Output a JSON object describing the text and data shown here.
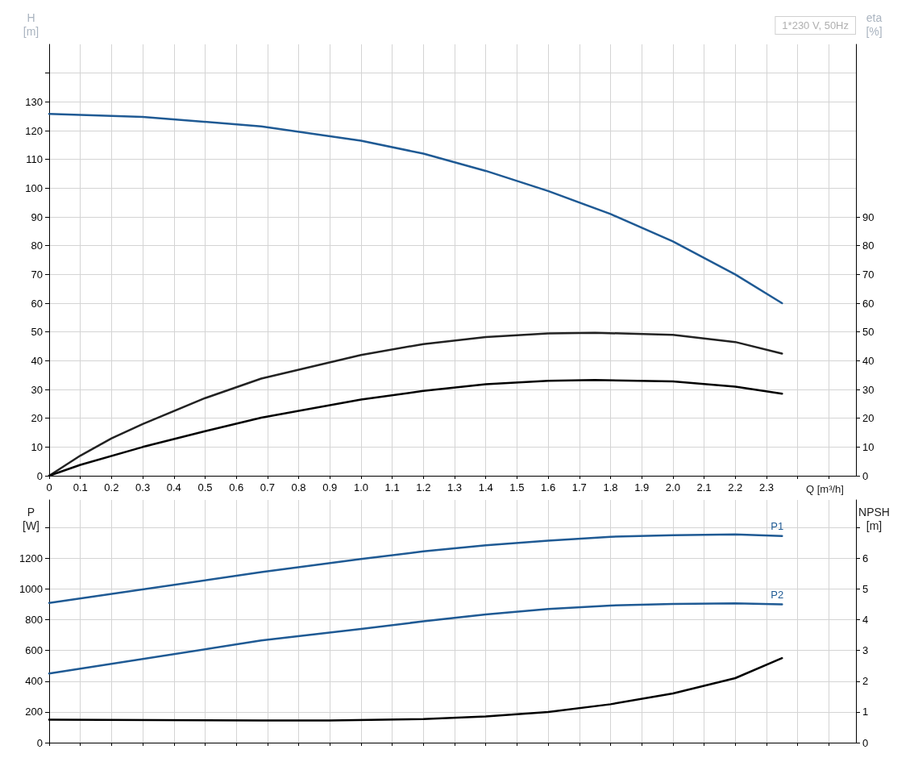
{
  "chart_data": [
    {
      "type": "line",
      "ylabel": "H\n[m]",
      "y2label": "eta\n[%]",
      "xlabel": "Q [m³/h]",
      "annotations": [
        "1*230 V, 50Hz"
      ],
      "grid": true,
      "legend": false,
      "marker": "none",
      "line_style": "solid",
      "xlim": [
        0,
        2.587
      ],
      "xticks": [
        0,
        0.1,
        0.2,
        0.3,
        0.4,
        0.5,
        0.6,
        0.7,
        0.8,
        0.9,
        {
          "value": 1.0,
          "label": "1.0"
        },
        1.1,
        1.2,
        1.3,
        1.4,
        1.5,
        1.6,
        1.7,
        1.8,
        1.9,
        {
          "value": 2.0,
          "label": "2.0"
        },
        2.1,
        2.2,
        2.3,
        {
          "value": 2.4,
          "label": null
        },
        {
          "value": 2.5,
          "label": null
        }
      ],
      "ylim": [
        0,
        150
      ],
      "yticks": [
        0,
        10,
        20,
        30,
        40,
        50,
        60,
        70,
        80,
        90,
        100,
        110,
        120,
        130,
        {
          "value": 140,
          "label": null
        }
      ],
      "y2lim": [
        0,
        150
      ],
      "y2ticks": [
        0,
        10,
        20,
        30,
        40,
        50,
        60,
        70,
        80,
        90
      ],
      "series": [
        {
          "color": "#1f5a94",
          "x": [
            0,
            0.3,
            0.68,
            1.0,
            1.2,
            1.4,
            1.6,
            1.8,
            2.0,
            2.2,
            2.35
          ],
          "values": [
            125.8,
            124.8,
            121.5,
            116.5,
            112,
            106,
            99,
            91,
            81.5,
            70,
            60
          ]
        },
        {
          "color": "#222222",
          "axis": "y2",
          "x": [
            0,
            0.1,
            0.2,
            0.3,
            0.5,
            0.68,
            1.0,
            1.2,
            1.4,
            1.6,
            1.75,
            2.0,
            2.2,
            2.35
          ],
          "values": [
            0,
            7,
            13,
            18,
            27,
            33.8,
            42,
            45.8,
            48.2,
            49.5,
            49.7,
            49,
            46.5,
            42.5
          ]
        },
        {
          "color": "#000000",
          "axis": "y2",
          "x": [
            0,
            0.1,
            0.3,
            0.5,
            0.68,
            1.0,
            1.2,
            1.4,
            1.6,
            1.75,
            2.0,
            2.2,
            2.35
          ],
          "values": [
            0,
            3.8,
            10,
            15.5,
            20.2,
            26.5,
            29.5,
            31.8,
            33,
            33.3,
            32.8,
            31,
            28.5
          ]
        }
      ]
    },
    {
      "type": "line",
      "ylabel": "P\n[W]",
      "y2label": "NPSH\n[m]",
      "grid": true,
      "legend": false,
      "marker": "none",
      "line_style": "solid",
      "tick_labels": "y",
      "xlim": [
        0,
        2.587
      ],
      "xticks": [
        0,
        0.1,
        0.2,
        0.3,
        0.4,
        0.5,
        0.6,
        0.7,
        0.8,
        0.9,
        1,
        1.1,
        1.2,
        1.3,
        1.4,
        1.5,
        1.6,
        1.7,
        1.8,
        1.9,
        2,
        2.1,
        2.2,
        2.3,
        {
          "value": 2.4,
          "label": null
        },
        {
          "value": 2.5,
          "label": null
        }
      ],
      "ylim": [
        0,
        1580
      ],
      "yticks": [
        0,
        200,
        400,
        600,
        800,
        1000,
        1200,
        {
          "value": 1400,
          "label": null
        }
      ],
      "y2lim": [
        0,
        7.9
      ],
      "y2ticks": [
        0,
        1,
        2,
        3,
        4,
        5,
        6,
        {
          "value": 7,
          "label": null
        }
      ],
      "series": [
        {
          "name": "P1",
          "color": "#1f5a94",
          "x": [
            0,
            0.68,
            1.0,
            1.2,
            1.4,
            1.6,
            1.8,
            2.0,
            2.2,
            2.35
          ],
          "values": [
            910,
            1110,
            1195,
            1245,
            1285,
            1315,
            1340,
            1350,
            1355,
            1345
          ]
        },
        {
          "name": "P2",
          "color": "#1f5a94",
          "x": [
            0,
            0.68,
            1.0,
            1.2,
            1.4,
            1.6,
            1.8,
            2.0,
            2.2,
            2.35
          ],
          "values": [
            450,
            665,
            740,
            790,
            835,
            870,
            893,
            903,
            907,
            900
          ]
        },
        {
          "color": "#000000",
          "axis": "y2",
          "x": [
            0,
            0.68,
            0.9,
            1.2,
            1.4,
            1.6,
            1.8,
            2.0,
            2.2,
            2.35
          ],
          "values": [
            0.75,
            0.72,
            0.72,
            0.77,
            0.85,
            1.0,
            1.25,
            1.6,
            2.1,
            2.75
          ]
        }
      ]
    }
  ]
}
